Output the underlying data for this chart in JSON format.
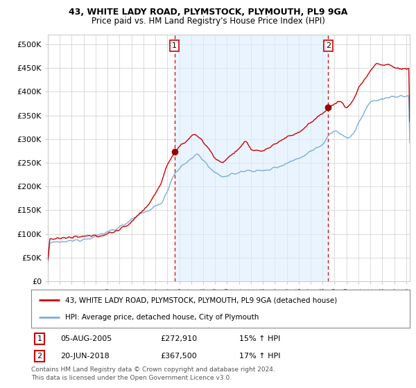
{
  "title": "43, WHITE LADY ROAD, PLYMSTOCK, PLYMOUTH, PL9 9GA",
  "subtitle": "Price paid vs. HM Land Registry's House Price Index (HPI)",
  "ylabel_ticks": [
    "£0",
    "£50K",
    "£100K",
    "£150K",
    "£200K",
    "£250K",
    "£300K",
    "£350K",
    "£400K",
    "£450K",
    "£500K"
  ],
  "ytick_values": [
    0,
    50000,
    100000,
    150000,
    200000,
    250000,
    300000,
    350000,
    400000,
    450000,
    500000
  ],
  "ylim": [
    0,
    520000
  ],
  "xlim_start": 1995.0,
  "xlim_end": 2025.3,
  "sale1_x": 2005.6,
  "sale1_y": 272910,
  "sale2_x": 2018.47,
  "sale2_y": 367500,
  "legend_line1": "43, WHITE LADY ROAD, PLYMSTOCK, PLYMOUTH, PL9 9GA (detached house)",
  "legend_line2": "HPI: Average price, detached house, City of Plymouth",
  "annotation1": [
    "1",
    "05-AUG-2005",
    "£272,910",
    "15% ↑ HPI"
  ],
  "annotation2": [
    "2",
    "20-JUN-2018",
    "£367,500",
    "17% ↑ HPI"
  ],
  "footer": [
    "Contains HM Land Registry data © Crown copyright and database right 2024.",
    "This data is licensed under the Open Government Licence v3.0."
  ],
  "line_color_red": "#cc0000",
  "line_color_blue": "#7aaddb",
  "shade_color": "#ddeeff",
  "dot_color_red": "#990000",
  "background_color": "#ffffff",
  "grid_color": "#cccccc"
}
